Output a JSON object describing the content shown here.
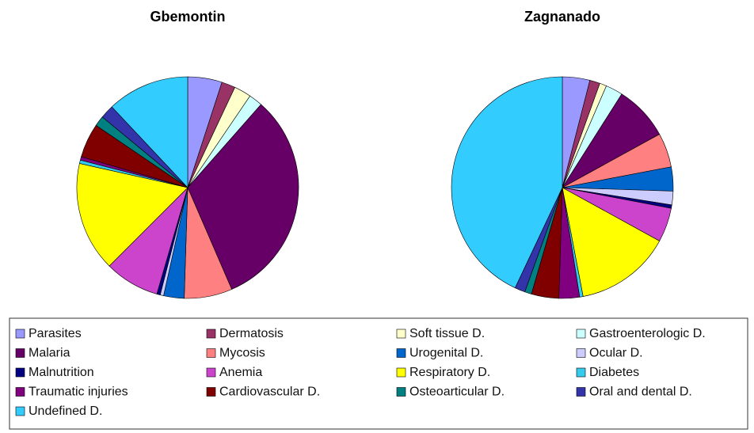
{
  "chart_data": [
    {
      "type": "pie",
      "title": "Gbemontin",
      "categories": [
        "Parasites",
        "Dermatosis",
        "Soft tissue D.",
        "Gastroenterologic D.",
        "Malaria",
        "Mycosis",
        "Urogenital D.",
        "Ocular D.",
        "Malnutrition",
        "Anemia",
        "Respiratory D.",
        "Diabetes",
        "Traumatic injuries",
        "Cardiovascular D.",
        "Osteoarticular D.",
        "Oral and dental D.",
        "Undefined D."
      ],
      "colors": [
        "#9999ff",
        "#993366",
        "#ffffcc",
        "#ccffff",
        "#660066",
        "#ff8080",
        "#0066cc",
        "#ccccff",
        "#000080",
        "#cc44cc",
        "#ffff00",
        "#33ccee",
        "#800080",
        "#800000",
        "#008080",
        "#3333aa",
        "#33ccff"
      ],
      "values": [
        5,
        2,
        2.5,
        2,
        32,
        7,
        3,
        0.5,
        0.5,
        8,
        16,
        0.5,
        0.5,
        5,
        1.5,
        2,
        12
      ]
    },
    {
      "type": "pie",
      "title": "Zagnanado",
      "values": [
        4,
        1.5,
        1,
        2.5,
        8,
        5,
        3.5,
        2,
        0.5,
        5,
        14,
        0.5,
        3,
        4,
        1,
        1.5,
        43
      ]
    }
  ]
}
